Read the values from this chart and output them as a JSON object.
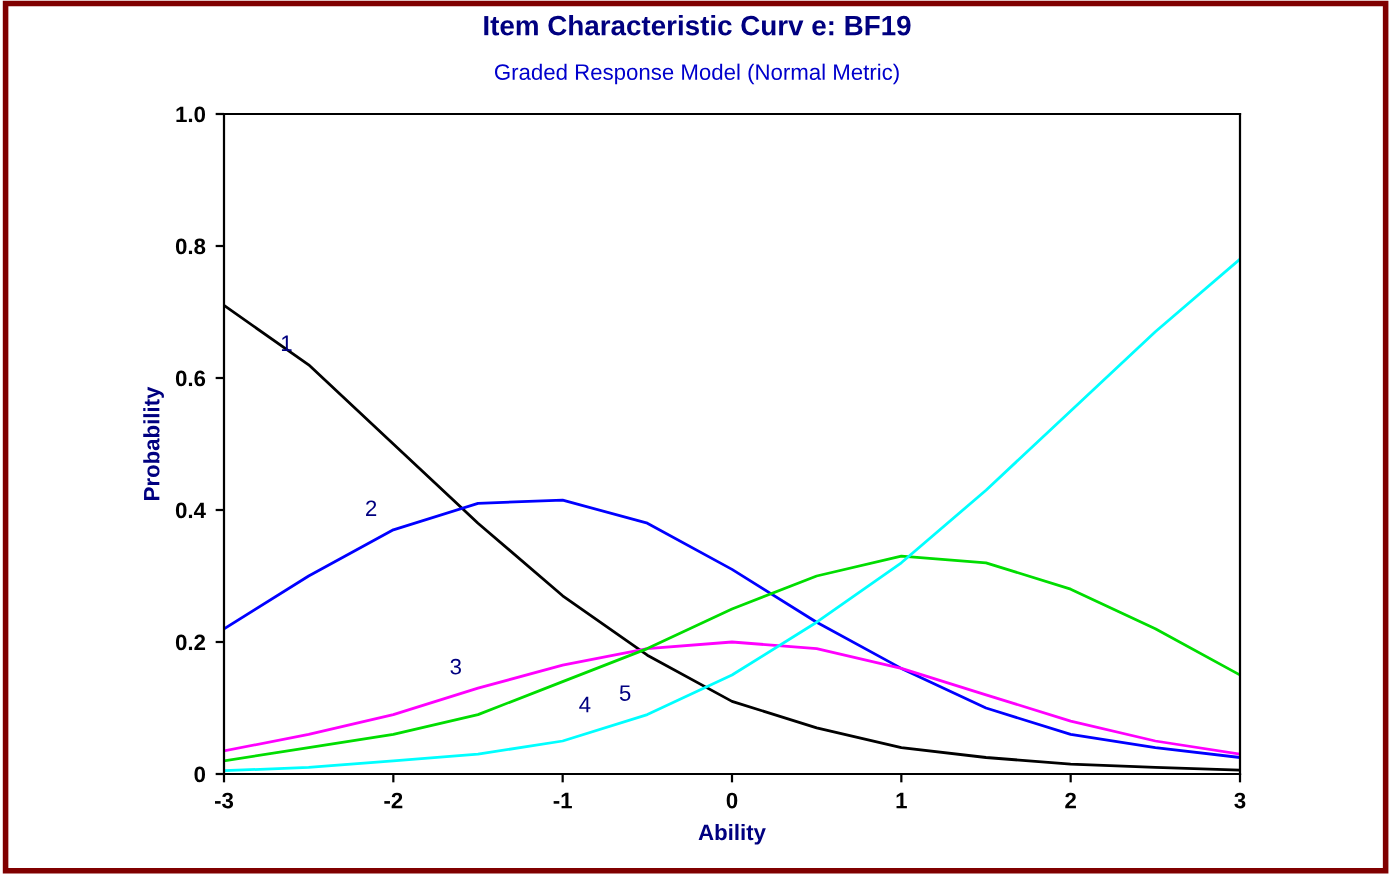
{
  "chart_data": {
    "type": "line",
    "title": "Item Characteristic Curv e: BF19",
    "subtitle": "Graded Response Model (Normal Metric)",
    "xlabel": "Ability",
    "ylabel": "Probability",
    "x": [
      -3,
      -2.5,
      -2,
      -1.5,
      -1,
      -0.5,
      0,
      0.5,
      1,
      1.5,
      2,
      2.5,
      3
    ],
    "xlim": [
      -3,
      3
    ],
    "xticks": [
      -3,
      -2,
      -1,
      0,
      1,
      2,
      3
    ],
    "ylim": [
      0,
      1
    ],
    "yticks": [
      0,
      {
        "value": 0.2,
        "label": "0.2"
      },
      {
        "value": 0.4,
        "label": "0.4"
      },
      {
        "value": 0.6,
        "label": "0.6"
      },
      {
        "value": 0.8,
        "label": "0.8"
      },
      {
        "value": 1,
        "label": "1.0"
      }
    ],
    "grid": false,
    "legend": false,
    "marker": "none",
    "line_style": "solid",
    "series": [
      {
        "name": "1",
        "color": "#000000",
        "values": [
          0.71,
          0.62,
          0.5,
          0.38,
          0.27,
          0.18,
          0.11,
          0.07,
          0.04,
          0.025,
          0.015,
          0.01,
          0.006
        ]
      },
      {
        "name": "2",
        "color": "#0000ff",
        "values": [
          0.22,
          0.3,
          0.37,
          0.41,
          0.415,
          0.38,
          0.31,
          0.23,
          0.16,
          0.1,
          0.06,
          0.04,
          0.025
        ]
      },
      {
        "name": "3",
        "color": "#ff00ff",
        "values": [
          0.035,
          0.06,
          0.09,
          0.13,
          0.165,
          0.19,
          0.2,
          0.19,
          0.16,
          0.12,
          0.08,
          0.05,
          0.03
        ]
      },
      {
        "name": "4",
        "color": "#00dd00",
        "values": [
          0.02,
          0.04,
          0.06,
          0.09,
          0.14,
          0.19,
          0.25,
          0.3,
          0.33,
          0.32,
          0.28,
          0.22,
          0.15
        ]
      },
      {
        "name": "5",
        "color": "#00ffff",
        "values": [
          0.005,
          0.01,
          0.02,
          0.03,
          0.05,
          0.09,
          0.15,
          0.23,
          0.32,
          0.43,
          0.55,
          0.67,
          0.78
        ]
      }
    ]
  }
}
